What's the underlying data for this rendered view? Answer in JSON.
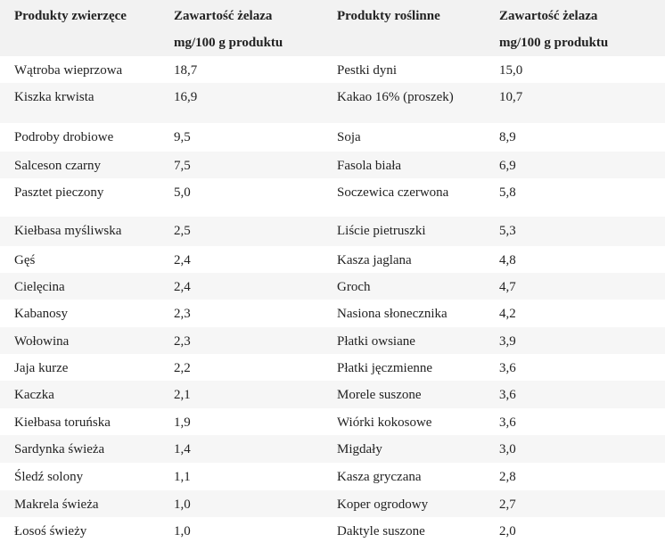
{
  "table": {
    "header": [
      [
        "Produkty zwierzęce"
      ],
      [
        "Zawartość żelaza",
        "mg/100 g produktu"
      ],
      [
        "Produkty roślinne"
      ],
      [
        "Zawartość żelaza",
        "mg/100 g produktu"
      ]
    ],
    "rows": [
      [
        "Wątroba wieprzowa",
        "18,7",
        "Pestki dyni",
        "15,0"
      ],
      [
        "Kiszka krwista",
        "16,9",
        "Kakao 16% (proszek)",
        "10,7"
      ],
      [
        "Podroby drobiowe",
        "9,5",
        "Soja",
        "8,9"
      ],
      [
        "Salceson czarny",
        "7,5",
        "Fasola biała",
        "6,9"
      ],
      [
        "Pasztet pieczony",
        "5,0",
        "Soczewica czerwona",
        "5,8"
      ],
      [
        "Kiełbasa myśliwska",
        "2,5",
        "Liście pietruszki",
        "5,3"
      ],
      [
        "Gęś",
        "2,4",
        "Kasza jaglana",
        "4,8"
      ],
      [
        "Cielęcina",
        "2,4",
        "Groch",
        "4,7"
      ],
      [
        "Kabanosy",
        "2,3",
        "Nasiona słonecznika",
        "4,2"
      ],
      [
        "Wołowina",
        "2,3",
        "Płatki owsiane",
        "3,9"
      ],
      [
        "Jaja kurze",
        "2,2",
        "Płatki jęczmienne",
        "3,6"
      ],
      [
        "Kaczka",
        "2,1",
        "Morele suszone",
        "3,6"
      ],
      [
        "Kiełbasa toruńska",
        "1,9",
        "Wiórki kokosowe",
        "3,6"
      ],
      [
        "Sardynka świeża",
        "1,4",
        "Migdały",
        "3,0"
      ],
      [
        "Śledź solony",
        "1,1",
        "Kasza gryczana",
        "2,8"
      ],
      [
        "Makrela świeża",
        "1,0",
        "Koper ogrodowy",
        "2,7"
      ],
      [
        "Łosoś świeży",
        "1,0",
        "Daktyle suszone",
        "2,0"
      ]
    ]
  }
}
